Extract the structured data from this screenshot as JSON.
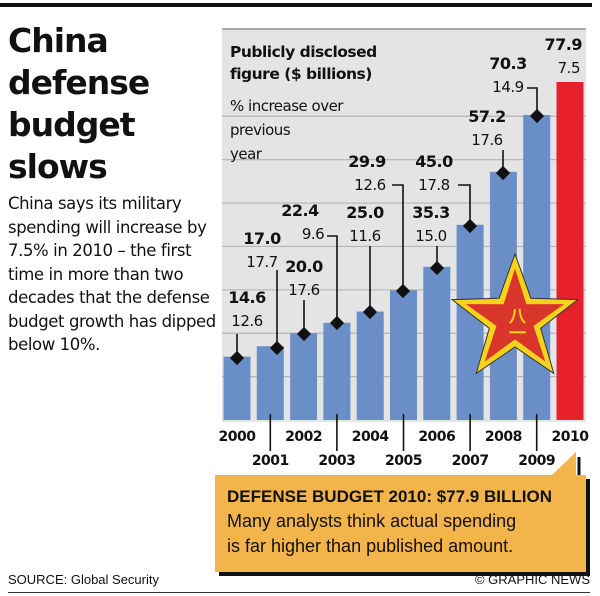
{
  "headline": {
    "lines": [
      "China",
      "defense",
      "budget",
      "slows"
    ]
  },
  "intro": "China says its military spending will increase by 7.5% in 2010 – the first time in more than two decades that the defense budget growth has dipped below 10%.",
  "chart_data": {
    "type": "bar",
    "legend": {
      "value_label": [
        "Publicly disclosed",
        "figure ($ billions)"
      ],
      "pct_label": [
        "% increase over",
        "previous",
        "year"
      ]
    },
    "categories": [
      "2000",
      "2001",
      "2002",
      "2003",
      "2004",
      "2005",
      "2006",
      "2007",
      "2008",
      "2009",
      "2010"
    ],
    "values": [
      14.6,
      17.0,
      20.0,
      22.4,
      25.0,
      29.9,
      35.3,
      45.0,
      57.2,
      70.3,
      77.9
    ],
    "value_labels": [
      "14.6",
      "17.0",
      "20.0",
      "22.4",
      "25.0",
      "29.9",
      "35.3",
      "45.0",
      "57.2",
      "70.3",
      "77.9"
    ],
    "pct_increase": [
      "12.6",
      "17.7",
      "17.6",
      "9.6",
      "11.6",
      "12.6",
      "15.0",
      "17.8",
      "17.6",
      "14.9",
      "7.5"
    ],
    "ylim": [
      0,
      80
    ],
    "grid": true,
    "colors": {
      "bar": "#6a8fc8",
      "highlight_bar": "#e8202a",
      "background": "#e4e4e4",
      "star_fill": "#d9352a",
      "star_outline": "#f5d21c"
    }
  },
  "star_emblem_text": "八一",
  "callout": {
    "title": "DEFENSE BUDGET 2010: $77.9 BILLION",
    "lines": [
      "Many analysts think actual spending",
      "is far higher than published amount."
    ],
    "color": "#f4b44c"
  },
  "footer": {
    "source": "SOURCE: Global Security",
    "credit": "© GRAPHIC NEWS"
  }
}
